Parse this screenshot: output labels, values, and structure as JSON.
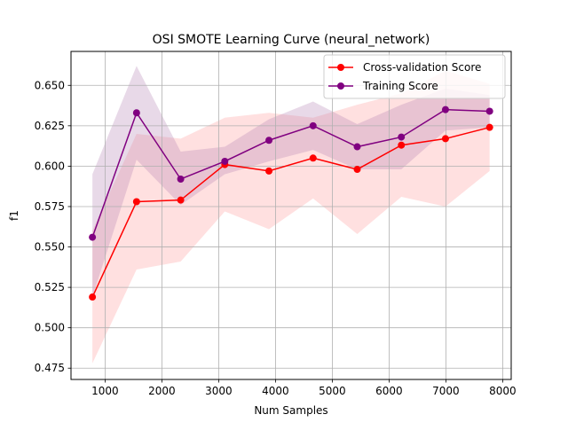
{
  "chart_data": {
    "type": "line",
    "title": "OSI SMOTE Learning Curve (neural_network)",
    "xlabel": "Num Samples",
    "ylabel": "f1",
    "xlim": [
      400,
      8150
    ],
    "ylim": [
      0.468,
      0.671
    ],
    "x_ticks": [
      1000,
      2000,
      3000,
      4000,
      5000,
      6000,
      7000,
      8000
    ],
    "x_tick_labels": [
      "1000",
      "2000",
      "3000",
      "4000",
      "5000",
      "6000",
      "7000",
      "8000"
    ],
    "y_ticks": [
      0.475,
      0.5,
      0.525,
      0.55,
      0.575,
      0.6,
      0.625,
      0.65
    ],
    "y_tick_labels": [
      "0.475",
      "0.500",
      "0.525",
      "0.550",
      "0.575",
      "0.600",
      "0.625",
      "0.650"
    ],
    "grid": true,
    "legend_position": "top-right",
    "x": [
      777,
      1554,
      2331,
      3108,
      3885,
      4662,
      5439,
      6216,
      6993,
      7770
    ],
    "series": [
      {
        "name": "Cross-validation Score",
        "color": "#ff0000",
        "band_color": "#ff9999",
        "values": [
          0.519,
          0.578,
          0.579,
          0.601,
          0.597,
          0.605,
          0.598,
          0.613,
          0.617,
          0.624
        ],
        "lower": [
          0.478,
          0.536,
          0.541,
          0.572,
          0.561,
          0.58,
          0.558,
          0.581,
          0.575,
          0.597
        ],
        "upper": [
          0.56,
          0.62,
          0.617,
          0.63,
          0.633,
          0.63,
          0.638,
          0.645,
          0.659,
          0.651
        ]
      },
      {
        "name": "Training Score",
        "color": "#800080",
        "band_color": "#b380b3",
        "values": [
          0.556,
          0.633,
          0.592,
          0.603,
          0.616,
          0.625,
          0.612,
          0.618,
          0.635,
          0.634
        ],
        "lower": [
          0.519,
          0.604,
          0.576,
          0.595,
          0.603,
          0.61,
          0.598,
          0.598,
          0.622,
          0.624
        ],
        "upper": [
          0.595,
          0.662,
          0.609,
          0.612,
          0.629,
          0.64,
          0.626,
          0.638,
          0.648,
          0.644
        ]
      }
    ]
  }
}
